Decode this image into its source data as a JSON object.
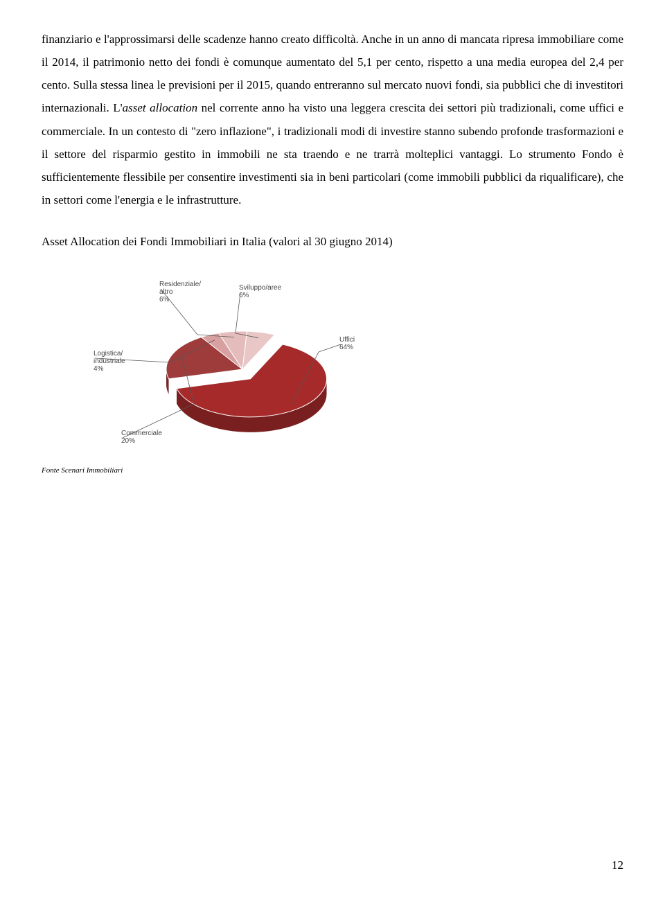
{
  "paragraph": {
    "pre": "finanziario e l'approssimarsi delle scadenze hanno creato difficoltà. Anche in un anno di mancata ripresa immobiliare come il 2014, il patrimonio netto dei fondi è comunque aumentato del 5,1 per cento, rispetto a una media europea del 2,4 per cento. Sulla stessa linea le previsioni per il 2015, quando entreranno sul mercato nuovi fondi, sia pubblici che di investitori internazionali. L'",
    "italic": "asset allocation",
    "post": " nel corrente anno ha visto una leggera crescita dei settori più tradizionali, come uffici e commerciale. In un contesto di \"zero inflazione\", i tradizionali modi di investire stanno subendo profonde trasformazioni e il settore del risparmio gestito in immobili ne sta traendo e ne trarrà molteplici vantaggi. Lo strumento Fondo è sufficientemente flessibile per consentire investimenti sia in beni particolari (come immobili pubblici da riqualificare), che in settori come l'energia e le infrastrutture."
  },
  "chart_title": "Asset Allocation dei Fondi Immobiliari in Italia (valori al 30 giugno 2014)",
  "source_text": "Fonte Scenari Immobiliari",
  "page_number": "12",
  "chart": {
    "type": "pie-3d-exploded",
    "slices": [
      {
        "label": "Uffici",
        "value": 64,
        "color_top": "#a62a2a",
        "color_side": "#7a1f1f",
        "label_pos": "right",
        "exploded": true
      },
      {
        "label": "Commerciale",
        "value": 20,
        "color_top": "#9e3c3c",
        "color_side": "#732b2b",
        "label_pos": "bottom-left"
      },
      {
        "label": "Logistica/\nindustriale",
        "value": 4,
        "color_top": "#d8a0a0",
        "color_side": "#b87a7a",
        "label_pos": "left"
      },
      {
        "label": "Residenziale/\naltro",
        "value": 6,
        "color_top": "#e5bcbc",
        "color_side": "#c99595",
        "label_pos": "top-left"
      },
      {
        "label": "Sviluppo/aree",
        "value": 6,
        "color_top": "#e9c7c7",
        "color_side": "#c99f9f",
        "label_pos": "top"
      }
    ],
    "label_fontsize": 10,
    "label_color": "#444444",
    "background": "#ffffff"
  }
}
